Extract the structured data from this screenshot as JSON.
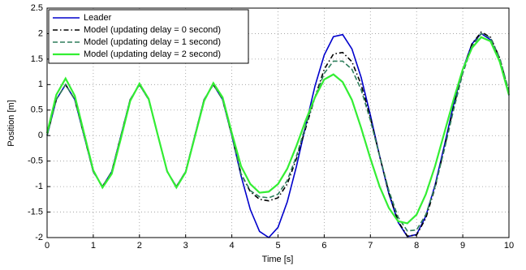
{
  "chart_data": {
    "type": "line",
    "x_label": "Time [s]",
    "y_label": "Position [m]",
    "x": [
      0,
      0.2,
      0.4,
      0.6,
      0.8,
      1,
      1.2,
      1.4,
      1.6,
      1.8,
      2,
      2.2,
      2.4,
      2.6,
      2.8,
      3,
      3.2,
      3.4,
      3.6,
      3.8,
      4,
      4.2,
      4.4,
      4.6,
      4.8,
      5,
      5.2,
      5.4,
      5.6,
      5.8,
      6,
      6.2,
      6.4,
      6.6,
      6.8,
      7,
      7.2,
      7.4,
      7.6,
      7.8,
      8,
      8.2,
      8.4,
      8.6,
      8.8,
      9,
      9.2,
      9.4,
      9.6,
      9.8,
      10
    ],
    "series": [
      {
        "name": "Leader",
        "color": "#0000cc",
        "line_style": "solid",
        "values": [
          0,
          0.707,
          1,
          0.707,
          0,
          -0.707,
          -1,
          -0.707,
          0,
          0.707,
          1,
          0.707,
          0,
          -0.707,
          -1,
          -0.707,
          0,
          0.707,
          1,
          0.707,
          0,
          -0.79,
          -1.45,
          -1.88,
          -2.0,
          -1.8,
          -1.3,
          -0.6,
          0.2,
          0.97,
          1.58,
          1.94,
          1.98,
          1.7,
          1.14,
          0.4,
          -0.4,
          -1.14,
          -1.7,
          -1.98,
          -1.94,
          -1.58,
          -0.97,
          -0.2,
          0.6,
          1.3,
          1.8,
          2.0,
          1.88,
          1.45,
          0.79
        ]
      },
      {
        "name": "Model (updating delay = 0 second)",
        "color": "#000000",
        "line_style": "dashdot",
        "values": [
          0,
          0.707,
          1,
          0.707,
          0,
          -0.707,
          -1,
          -0.707,
          0,
          0.707,
          1,
          0.707,
          0,
          -0.707,
          -1,
          -0.707,
          0,
          0.707,
          1,
          0.707,
          0,
          -0.75,
          -1.1,
          -1.25,
          -1.28,
          -1.22,
          -0.95,
          -0.45,
          0.15,
          0.75,
          1.3,
          1.6,
          1.63,
          1.45,
          1.0,
          0.35,
          -0.4,
          -1.12,
          -1.68,
          -1.97,
          -1.95,
          -1.62,
          -1.02,
          -0.25,
          0.55,
          1.27,
          1.8,
          2.03,
          1.93,
          1.52,
          0.85
        ]
      },
      {
        "name": "Model (updating delay = 1 second)",
        "color": "#2e7d5b",
        "line_style": "dashed",
        "values": [
          0,
          0.707,
          1,
          0.707,
          0,
          -0.707,
          -1,
          -0.707,
          0,
          0.707,
          1,
          0.707,
          0,
          -0.707,
          -1,
          -0.707,
          0,
          0.707,
          1,
          0.707,
          0,
          -0.75,
          -1.08,
          -1.2,
          -1.22,
          -1.15,
          -0.88,
          -0.4,
          0.2,
          0.75,
          1.22,
          1.46,
          1.46,
          1.3,
          0.9,
          0.3,
          -0.4,
          -1.08,
          -1.6,
          -1.87,
          -1.85,
          -1.55,
          -1.0,
          -0.28,
          0.5,
          1.22,
          1.75,
          2.0,
          1.92,
          1.52,
          0.87
        ]
      },
      {
        "name": "Model (updating delay = 2 second)",
        "color": "#33ee33",
        "line_style": "solid",
        "values": [
          0.05,
          0.8,
          1.12,
          0.78,
          0.05,
          -0.68,
          -1.02,
          -0.75,
          -0.05,
          0.68,
          1.02,
          0.72,
          0,
          -0.7,
          -1.02,
          -0.72,
          -0.02,
          0.68,
          1.03,
          0.75,
          0.05,
          -0.6,
          -0.95,
          -1.12,
          -1.1,
          -0.95,
          -0.65,
          -0.2,
          0.3,
          0.75,
          1.1,
          1.2,
          1.05,
          0.7,
          0.15,
          -0.45,
          -1.0,
          -1.42,
          -1.68,
          -1.72,
          -1.55,
          -1.15,
          -0.6,
          0.05,
          0.7,
          1.3,
          1.72,
          1.93,
          1.85,
          1.45,
          0.8
        ]
      }
    ],
    "xlim": [
      0,
      10
    ],
    "xticks": [
      0,
      1,
      2,
      3,
      4,
      5,
      6,
      7,
      8,
      9,
      10
    ],
    "ylim": [
      -2,
      2.5
    ],
    "yticks": [
      -2,
      -1.5,
      -1,
      -0.5,
      0,
      0.5,
      1,
      1.5,
      2,
      2.5
    ],
    "grid": true,
    "legend": "upper left"
  }
}
